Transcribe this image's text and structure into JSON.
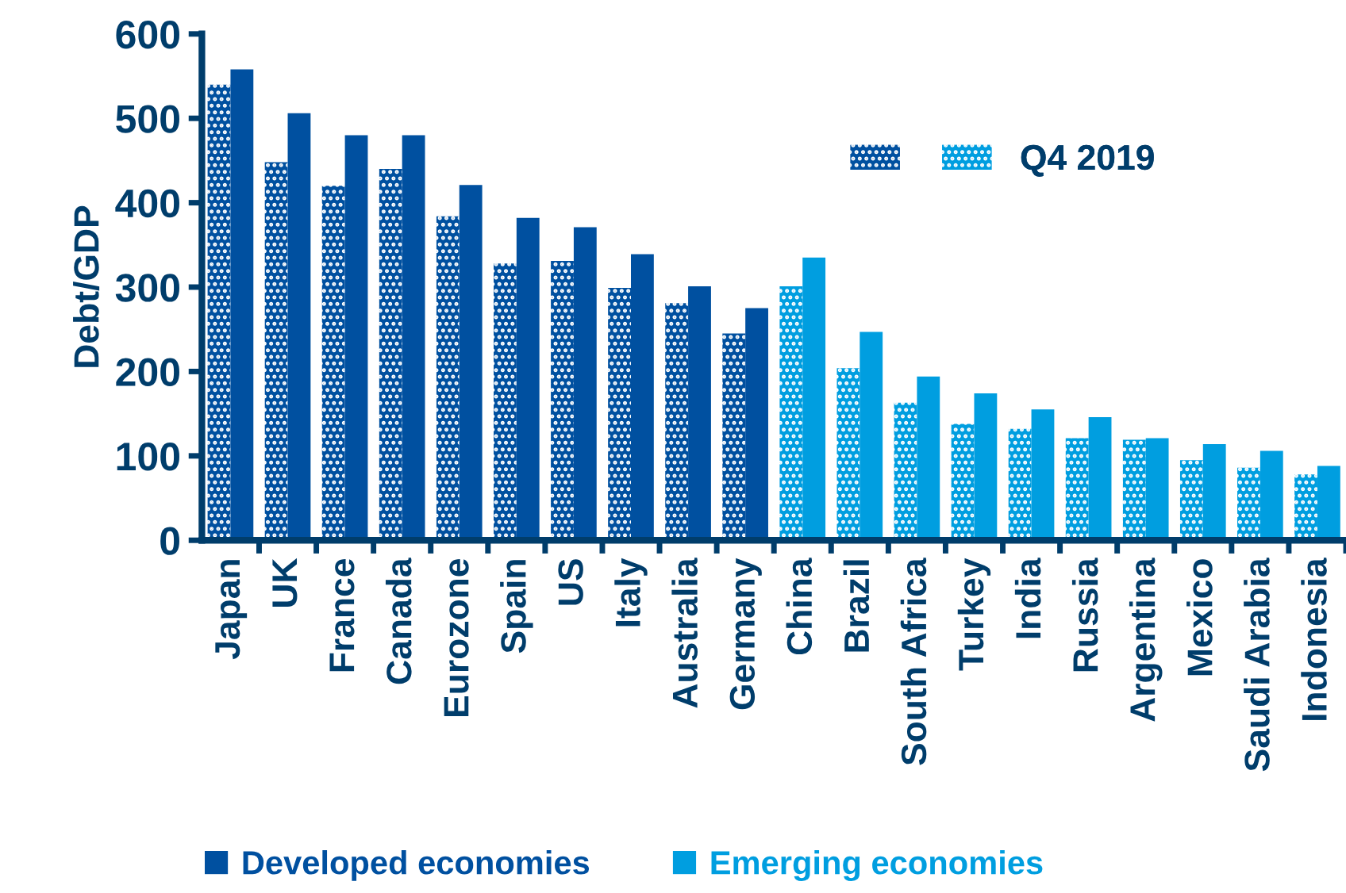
{
  "chart_data": {
    "type": "bar",
    "ylabel": "Debt/GDP",
    "categories": [
      "Japan",
      "UK",
      "France",
      "Canada",
      "Eurozone",
      "Spain",
      "US",
      "Italy",
      "Australia",
      "Germany",
      "China",
      "Brazil",
      "South Africa",
      "Turkey",
      "India",
      "Russia",
      "Argentina",
      "Mexico",
      "Saudi Arabia",
      "Indonesia"
    ],
    "series": [
      {
        "color": "#0050a0",
        "values": [
          540,
          448,
          420,
          440,
          384,
          328,
          331,
          299,
          281,
          245,
          null,
          null,
          null,
          null,
          null,
          null,
          null,
          null,
          null,
          null
        ]
      },
      {
        "name": "Developed economies",
        "color": "#0050a0",
        "values": [
          558,
          506,
          480,
          480,
          421,
          382,
          371,
          339,
          301,
          275,
          null,
          null,
          null,
          null,
          null,
          null,
          null,
          null,
          null,
          null
        ]
      },
      {
        "name": "Q4 2019",
        "color": "#009ee0",
        "values": [
          null,
          null,
          null,
          null,
          null,
          null,
          null,
          null,
          null,
          null,
          301,
          204,
          163,
          138,
          132,
          121,
          119,
          95,
          86,
          78
        ]
      },
      {
        "name": "Emerging economies",
        "color": "#009ee0",
        "values": [
          null,
          null,
          null,
          null,
          null,
          null,
          null,
          null,
          null,
          null,
          335,
          247,
          194,
          174,
          155,
          146,
          121,
          114,
          106,
          88
        ]
      }
    ],
    "ylim": [
      0,
      600
    ],
    "yticks": [
      0,
      100,
      200,
      300,
      400,
      500,
      600
    ],
    "grid": false,
    "legend": "bottom"
  }
}
